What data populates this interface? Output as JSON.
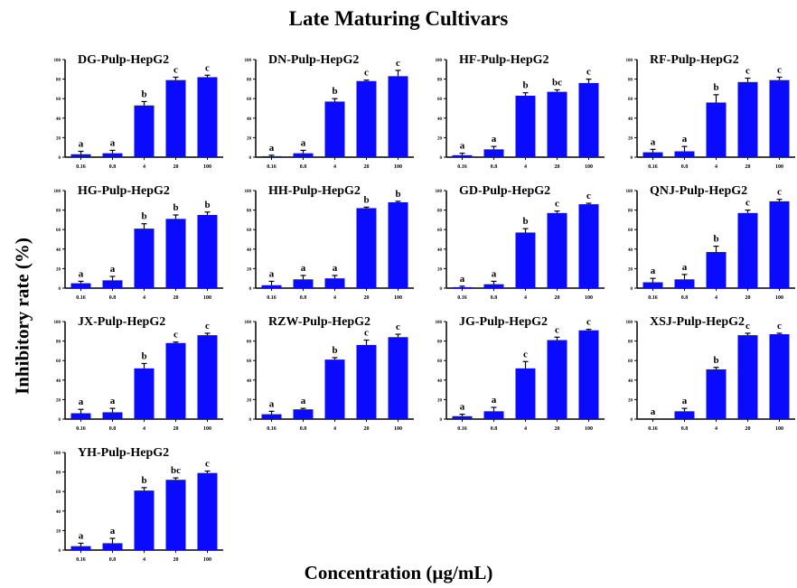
{
  "title": "Late Maturing Cultivars",
  "xlabel": "Concentration (µg/mL)",
  "ylabel": "Inhibitory rate (%)",
  "colors": {
    "bar": "#0a0aff",
    "axis": "#000000"
  },
  "chart_data": [
    {
      "type": "bar",
      "title": "DG-Pulp-HepG2",
      "categories": [
        "0.16",
        "0.8",
        "4",
        "20",
        "100"
      ],
      "values": [
        3,
        4,
        53,
        79,
        82
      ],
      "errors": [
        3,
        3,
        4,
        3,
        2
      ],
      "letters": [
        "a",
        "a",
        "b",
        "c",
        "c"
      ],
      "ylim": [
        0,
        100
      ],
      "yticks": [
        "0",
        "20",
        "40",
        "60",
        "80",
        "100"
      ]
    },
    {
      "type": "bar",
      "title": "DN-Pulp-HepG2",
      "categories": [
        "0.16",
        "0.8",
        "4",
        "20",
        "100"
      ],
      "values": [
        1,
        4,
        57,
        78,
        83
      ],
      "errors": [
        1,
        3,
        3,
        1,
        6
      ],
      "letters": [
        "a",
        "a",
        "b",
        "c",
        "c"
      ],
      "ylim": [
        0,
        100
      ],
      "yticks": [
        "0",
        "20",
        "40",
        "60",
        "80",
        "100"
      ]
    },
    {
      "type": "bar",
      "title": "HF-Pulp-HepG2",
      "categories": [
        "0.16",
        "0.8",
        "4",
        "20",
        "100"
      ],
      "values": [
        2,
        8,
        63,
        67,
        76
      ],
      "errors": [
        2,
        3,
        3,
        2,
        4
      ],
      "letters": [
        "a",
        "a",
        "b",
        "bc",
        "c"
      ],
      "ylim": [
        0,
        100
      ],
      "yticks": [
        "0",
        "20",
        "40",
        "60",
        "80",
        "100"
      ]
    },
    {
      "type": "bar",
      "title": "RF-Pulp-HepG2",
      "categories": [
        "0.16",
        "0.8",
        "4",
        "20",
        "100"
      ],
      "values": [
        5,
        6,
        56,
        77,
        79
      ],
      "errors": [
        3,
        5,
        8,
        4,
        3
      ],
      "letters": [
        "a",
        "a",
        "b",
        "c",
        "c"
      ],
      "ylim": [
        0,
        100
      ],
      "yticks": [
        "0",
        "20",
        "40",
        "60",
        "80",
        "100"
      ]
    },
    {
      "type": "bar",
      "title": "HG-Pulp-HepG2",
      "categories": [
        "0.16",
        "0.8",
        "4",
        "20",
        "100"
      ],
      "values": [
        5,
        8,
        61,
        71,
        75
      ],
      "errors": [
        2,
        4,
        5,
        4,
        3
      ],
      "letters": [
        "a",
        "a",
        "b",
        "b",
        "b"
      ],
      "ylim": [
        0,
        100
      ],
      "yticks": [
        "0",
        "20",
        "40",
        "60",
        "80",
        "100"
      ]
    },
    {
      "type": "bar",
      "title": "HH-Pulp-HepG2",
      "categories": [
        "0.16",
        "0.8",
        "4",
        "20",
        "100"
      ],
      "values": [
        3,
        9,
        10,
        82,
        88
      ],
      "errors": [
        4,
        4,
        3,
        1,
        1
      ],
      "letters": [
        "a",
        "a",
        "a",
        "b",
        "b"
      ],
      "ylim": [
        0,
        100
      ],
      "yticks": [
        "0",
        "20",
        "40",
        "60",
        "80",
        "100"
      ]
    },
    {
      "type": "bar",
      "title": "GD-Pulp-HepG2",
      "categories": [
        "0.16",
        "0.8",
        "4",
        "20",
        "100"
      ],
      "values": [
        1,
        4,
        57,
        77,
        86
      ],
      "errors": [
        1,
        3,
        4,
        2,
        1
      ],
      "letters": [
        "a",
        "a",
        "b",
        "c",
        "c"
      ],
      "ylim": [
        0,
        100
      ],
      "yticks": [
        "0",
        "20",
        "40",
        "60",
        "80",
        "100"
      ]
    },
    {
      "type": "bar",
      "title": "QNJ-Pulp-HepG2",
      "categories": [
        "0.16",
        "0.8",
        "4",
        "20",
        "100"
      ],
      "values": [
        6,
        9,
        37,
        77,
        89
      ],
      "errors": [
        4,
        5,
        6,
        3,
        2
      ],
      "letters": [
        "a",
        "a",
        "b",
        "c",
        "c"
      ],
      "ylim": [
        0,
        100
      ],
      "yticks": [
        "0",
        "20",
        "40",
        "60",
        "80",
        "100"
      ]
    },
    {
      "type": "bar",
      "title": "JX-Pulp-HepG2",
      "categories": [
        "0.16",
        "0.8",
        "4",
        "20",
        "100"
      ],
      "values": [
        6,
        7,
        52,
        78,
        86
      ],
      "errors": [
        4,
        4,
        5,
        1,
        2
      ],
      "letters": [
        "a",
        "a",
        "b",
        "c",
        "c"
      ],
      "ylim": [
        0,
        100
      ],
      "yticks": [
        "0",
        "20",
        "40",
        "60",
        "80",
        "100"
      ]
    },
    {
      "type": "bar",
      "title": "RZW-Pulp-HepG2",
      "categories": [
        "0.16",
        "0.8",
        "4",
        "20",
        "100"
      ],
      "values": [
        5,
        10,
        61,
        76,
        84
      ],
      "errors": [
        3,
        1,
        2,
        5,
        3
      ],
      "letters": [
        "a",
        "a",
        "b",
        "c",
        "c"
      ],
      "ylim": [
        0,
        100
      ],
      "yticks": [
        "0",
        "20",
        "40",
        "60",
        "80",
        "100"
      ]
    },
    {
      "type": "bar",
      "title": "JG-Pulp-HepG2",
      "categories": [
        "0.16",
        "0.8",
        "4",
        "20",
        "100"
      ],
      "values": [
        3,
        8,
        52,
        81,
        91
      ],
      "errors": [
        2,
        4,
        7,
        3,
        1
      ],
      "letters": [
        "a",
        "a",
        "c",
        "c",
        "c"
      ],
      "ylim": [
        0,
        100
      ],
      "yticks": [
        "0",
        "20",
        "40",
        "60",
        "80",
        "100"
      ]
    },
    {
      "type": "bar",
      "title": "XSJ-Pulp-HepG2",
      "categories": [
        "0.16",
        "0.8",
        "4",
        "20",
        "100"
      ],
      "values": [
        0,
        8,
        51,
        86,
        87
      ],
      "errors": [
        0,
        3,
        2,
        2,
        1
      ],
      "letters": [
        "a",
        "a",
        "b",
        "c",
        "c"
      ],
      "ylim": [
        0,
        100
      ],
      "yticks": [
        "0",
        "20",
        "40",
        "60",
        "80",
        "100"
      ]
    },
    {
      "type": "bar",
      "title": "YH-Pulp-HepG2",
      "categories": [
        "0.16",
        "0.8",
        "4",
        "20",
        "100"
      ],
      "values": [
        4,
        7,
        61,
        72,
        79
      ],
      "errors": [
        3,
        5,
        3,
        2,
        2
      ],
      "letters": [
        "a",
        "a",
        "b",
        "bc",
        "c"
      ],
      "ylim": [
        0,
        100
      ],
      "yticks": [
        "0",
        "20",
        "40",
        "60",
        "80",
        "100"
      ]
    }
  ]
}
